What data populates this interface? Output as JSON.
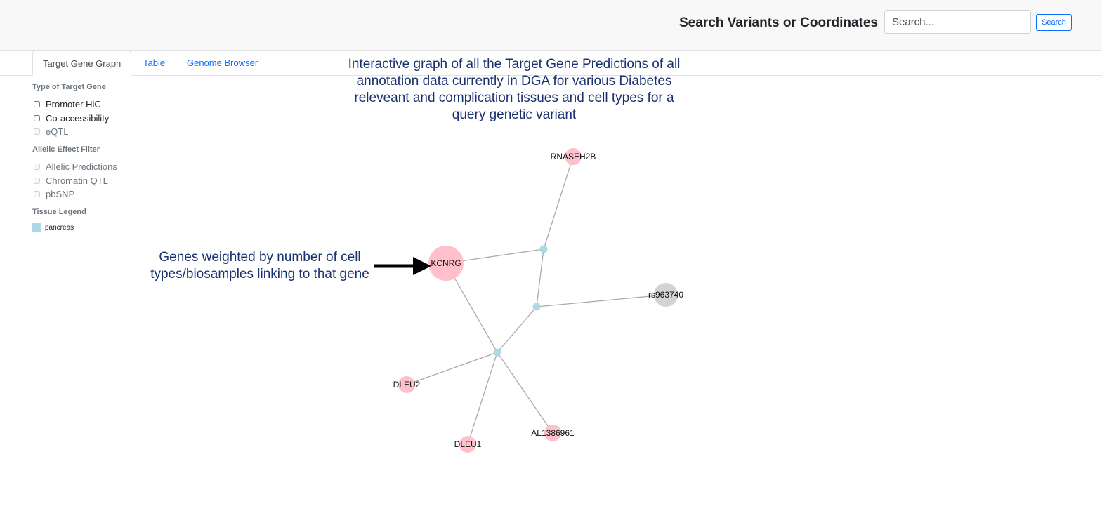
{
  "header": {
    "search_title": "Search Variants or Coordinates",
    "search_placeholder": "Search...",
    "search_button_label": "Search"
  },
  "tabs": [
    {
      "label": "Target Gene Graph",
      "active": true
    },
    {
      "label": "Table",
      "active": false
    },
    {
      "label": "Genome Browser",
      "active": false
    }
  ],
  "sidebar": {
    "target_gene_section": {
      "title": "Type of Target Gene",
      "options": [
        {
          "label": "Promoter HiC",
          "checked": false,
          "enabled": true
        },
        {
          "label": "Co-accessibility",
          "checked": false,
          "enabled": true
        },
        {
          "label": "eQTL",
          "checked": false,
          "enabled": false
        }
      ]
    },
    "allelic_section": {
      "title": "Allelic Effect Filter",
      "options": [
        {
          "label": "Allelic Predictions",
          "checked": false,
          "enabled": false
        },
        {
          "label": "Chromatin QTL",
          "checked": false,
          "enabled": false
        },
        {
          "label": "pbSNP",
          "checked": false,
          "enabled": false
        }
      ]
    },
    "tissue_legend": {
      "title": "Tissue Legend",
      "items": [
        {
          "label": "pancreas",
          "color": "#add8e6"
        }
      ]
    }
  },
  "annotations": {
    "graph_description": "Interactive graph of all the Target Gene Predictions of all annotation data currently in DGA for various Diabetes releveant and complication tissues and cell types for a query genetic variant",
    "gene_weight_note": "Genes weighted by number of cell types/biosamples linking to that gene"
  },
  "graph": {
    "colors": {
      "gene": "#ffc0cb",
      "variant": "#d3d3d3",
      "tissue": "#add8e6",
      "edge": "#aaaaaa"
    },
    "nodes": [
      {
        "id": "RNASEH2B",
        "label": "RNASEH2B",
        "kind": "gene"
      },
      {
        "id": "KCNRG",
        "label": "KCNRG",
        "kind": "gene"
      },
      {
        "id": "rs963740",
        "label": "rs963740",
        "kind": "variant"
      },
      {
        "id": "DLEU2",
        "label": "DLEU2",
        "kind": "gene"
      },
      {
        "id": "DLEU1",
        "label": "DLEU1",
        "kind": "gene"
      },
      {
        "id": "AL1386961",
        "label": "AL1386961",
        "kind": "gene"
      },
      {
        "id": "hub1",
        "label": "",
        "kind": "tissue"
      },
      {
        "id": "hub2",
        "label": "",
        "kind": "tissue"
      },
      {
        "id": "hub3",
        "label": "",
        "kind": "tissue"
      }
    ],
    "edges": [
      [
        "RNASEH2B",
        "hub1"
      ],
      [
        "KCNRG",
        "hub1"
      ],
      [
        "hub1",
        "hub2"
      ],
      [
        "hub2",
        "rs963740"
      ],
      [
        "hub2",
        "hub3"
      ],
      [
        "KCNRG",
        "hub3"
      ],
      [
        "hub3",
        "DLEU2"
      ],
      [
        "hub3",
        "DLEU1"
      ],
      [
        "hub3",
        "AL1386961"
      ]
    ]
  }
}
